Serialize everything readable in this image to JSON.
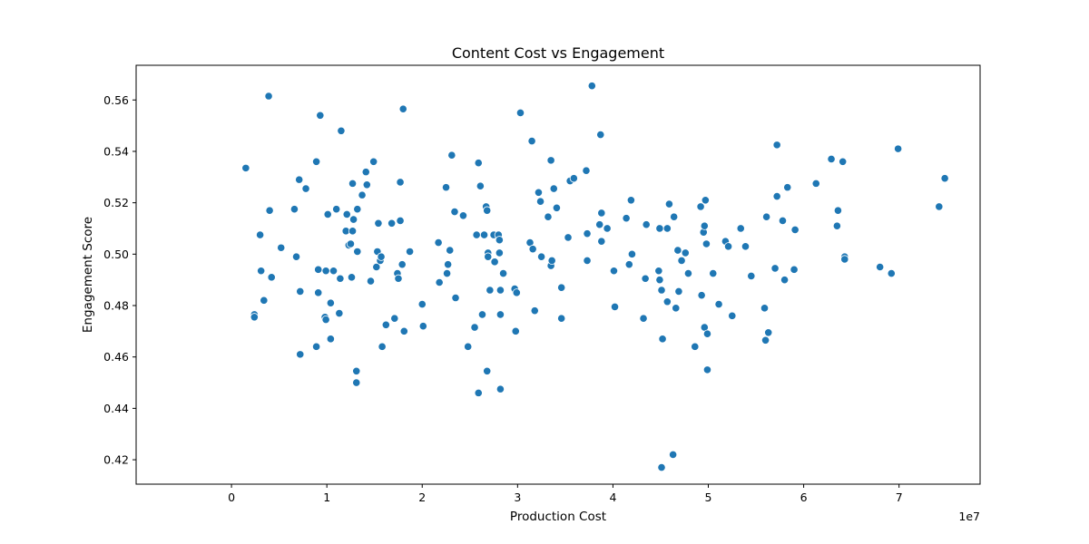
{
  "chart_data": {
    "type": "scatter",
    "title": "Content Cost vs Engagement",
    "xlabel": "Production Cost",
    "ylabel": "Engagement Score",
    "x_offset_label": "1e7",
    "xlim": [
      -1.0,
      7.85
    ],
    "ylim": [
      0.4105,
      0.5735
    ],
    "xticks": [
      0,
      1,
      2,
      3,
      4,
      5,
      6,
      7
    ],
    "xtick_labels": [
      "0",
      "1",
      "2",
      "3",
      "4",
      "5",
      "6",
      "7"
    ],
    "yticks": [
      0.42,
      0.44,
      0.46,
      0.48,
      0.5,
      0.52,
      0.54,
      0.56
    ],
    "ytick_labels": [
      "0.42",
      "0.44",
      "0.46",
      "0.48",
      "0.50",
      "0.52",
      "0.54",
      "0.56"
    ],
    "grid": false,
    "marker_color": "#1f77b4",
    "points": [
      [
        0.15,
        0.5335
      ],
      [
        0.24,
        0.4765
      ],
      [
        0.24,
        0.4755
      ],
      [
        0.3,
        0.5075
      ],
      [
        0.31,
        0.4935
      ],
      [
        0.34,
        0.482
      ],
      [
        0.39,
        0.5615
      ],
      [
        0.4,
        0.517
      ],
      [
        0.42,
        0.491
      ],
      [
        0.52,
        0.5025
      ],
      [
        0.66,
        0.5175
      ],
      [
        0.68,
        0.499
      ],
      [
        0.71,
        0.529
      ],
      [
        0.72,
        0.4855
      ],
      [
        0.72,
        0.461
      ],
      [
        0.78,
        0.5255
      ],
      [
        0.89,
        0.536
      ],
      [
        0.89,
        0.464
      ],
      [
        0.91,
        0.494
      ],
      [
        0.91,
        0.485
      ],
      [
        0.93,
        0.554
      ],
      [
        0.98,
        0.4755
      ],
      [
        0.99,
        0.4745
      ],
      [
        0.99,
        0.4935
      ],
      [
        1.01,
        0.5155
      ],
      [
        1.04,
        0.481
      ],
      [
        1.04,
        0.467
      ],
      [
        1.07,
        0.4935
      ],
      [
        1.1,
        0.5175
      ],
      [
        1.13,
        0.477
      ],
      [
        1.14,
        0.4905
      ],
      [
        1.15,
        0.548
      ],
      [
        1.2,
        0.509
      ],
      [
        1.21,
        0.5155
      ],
      [
        1.23,
        0.5035
      ],
      [
        1.25,
        0.504
      ],
      [
        1.26,
        0.491
      ],
      [
        1.27,
        0.5275
      ],
      [
        1.27,
        0.509
      ],
      [
        1.28,
        0.5135
      ],
      [
        1.31,
        0.4545
      ],
      [
        1.31,
        0.45
      ],
      [
        1.32,
        0.501
      ],
      [
        1.32,
        0.5175
      ],
      [
        1.37,
        0.523
      ],
      [
        1.41,
        0.532
      ],
      [
        1.42,
        0.527
      ],
      [
        1.46,
        0.4895
      ],
      [
        1.49,
        0.536
      ],
      [
        1.52,
        0.495
      ],
      [
        1.53,
        0.501
      ],
      [
        1.54,
        0.512
      ],
      [
        1.56,
        0.4975
      ],
      [
        1.57,
        0.499
      ],
      [
        1.58,
        0.464
      ],
      [
        1.62,
        0.4725
      ],
      [
        1.68,
        0.512
      ],
      [
        1.71,
        0.475
      ],
      [
        1.74,
        0.4925
      ],
      [
        1.75,
        0.4905
      ],
      [
        1.77,
        0.528
      ],
      [
        1.77,
        0.513
      ],
      [
        1.79,
        0.496
      ],
      [
        1.8,
        0.5565
      ],
      [
        1.81,
        0.47
      ],
      [
        1.87,
        0.501
      ],
      [
        2.0,
        0.4805
      ],
      [
        2.01,
        0.472
      ],
      [
        2.17,
        0.5045
      ],
      [
        2.18,
        0.489
      ],
      [
        2.25,
        0.526
      ],
      [
        2.26,
        0.4925
      ],
      [
        2.27,
        0.496
      ],
      [
        2.29,
        0.5015
      ],
      [
        2.31,
        0.5385
      ],
      [
        2.34,
        0.5165
      ],
      [
        2.35,
        0.483
      ],
      [
        2.43,
        0.515
      ],
      [
        2.48,
        0.464
      ],
      [
        2.55,
        0.4715
      ],
      [
        2.57,
        0.5075
      ],
      [
        2.59,
        0.5355
      ],
      [
        2.59,
        0.446
      ],
      [
        2.61,
        0.5265
      ],
      [
        2.63,
        0.4765
      ],
      [
        2.65,
        0.5075
      ],
      [
        2.67,
        0.5185
      ],
      [
        2.68,
        0.517
      ],
      [
        2.68,
        0.4545
      ],
      [
        2.69,
        0.5005
      ],
      [
        2.69,
        0.499
      ],
      [
        2.71,
        0.486
      ],
      [
        2.75,
        0.5075
      ],
      [
        2.76,
        0.497
      ],
      [
        2.8,
        0.5075
      ],
      [
        2.81,
        0.5005
      ],
      [
        2.81,
        0.5055
      ],
      [
        2.82,
        0.486
      ],
      [
        2.82,
        0.4765
      ],
      [
        2.82,
        0.4475
      ],
      [
        2.85,
        0.4925
      ],
      [
        2.97,
        0.4865
      ],
      [
        2.98,
        0.47
      ],
      [
        2.99,
        0.485
      ],
      [
        3.03,
        0.555
      ],
      [
        3.13,
        0.5045
      ],
      [
        3.15,
        0.544
      ],
      [
        3.16,
        0.502
      ],
      [
        3.18,
        0.478
      ],
      [
        3.22,
        0.524
      ],
      [
        3.24,
        0.5205
      ],
      [
        3.25,
        0.499
      ],
      [
        3.32,
        0.5145
      ],
      [
        3.35,
        0.5365
      ],
      [
        3.35,
        0.4955
      ],
      [
        3.36,
        0.4975
      ],
      [
        3.38,
        0.5255
      ],
      [
        3.41,
        0.518
      ],
      [
        3.46,
        0.487
      ],
      [
        3.46,
        0.475
      ],
      [
        3.53,
        0.5065
      ],
      [
        3.55,
        0.5285
      ],
      [
        3.59,
        0.5295
      ],
      [
        3.72,
        0.5325
      ],
      [
        3.73,
        0.508
      ],
      [
        3.73,
        0.4975
      ],
      [
        3.78,
        0.5655
      ],
      [
        3.86,
        0.5115
      ],
      [
        3.87,
        0.5465
      ],
      [
        3.88,
        0.516
      ],
      [
        3.88,
        0.505
      ],
      [
        3.94,
        0.51
      ],
      [
        4.01,
        0.4935
      ],
      [
        4.02,
        0.4795
      ],
      [
        4.14,
        0.514
      ],
      [
        4.17,
        0.496
      ],
      [
        4.19,
        0.521
      ],
      [
        4.2,
        0.5
      ],
      [
        4.32,
        0.475
      ],
      [
        4.34,
        0.4905
      ],
      [
        4.35,
        0.5115
      ],
      [
        4.48,
        0.4935
      ],
      [
        4.49,
        0.51
      ],
      [
        4.49,
        0.49
      ],
      [
        4.51,
        0.486
      ],
      [
        4.51,
        0.417
      ],
      [
        4.52,
        0.467
      ],
      [
        4.57,
        0.51
      ],
      [
        4.57,
        0.4815
      ],
      [
        4.59,
        0.5195
      ],
      [
        4.63,
        0.422
      ],
      [
        4.64,
        0.5145
      ],
      [
        4.66,
        0.479
      ],
      [
        4.68,
        0.5015
      ],
      [
        4.69,
        0.4855
      ],
      [
        4.72,
        0.4975
      ],
      [
        4.76,
        0.5005
      ],
      [
        4.79,
        0.4925
      ],
      [
        4.86,
        0.464
      ],
      [
        4.92,
        0.5185
      ],
      [
        4.93,
        0.484
      ],
      [
        4.95,
        0.5085
      ],
      [
        4.96,
        0.511
      ],
      [
        4.96,
        0.4715
      ],
      [
        4.97,
        0.521
      ],
      [
        4.98,
        0.504
      ],
      [
        4.99,
        0.469
      ],
      [
        4.99,
        0.455
      ],
      [
        5.05,
        0.4925
      ],
      [
        5.11,
        0.4805
      ],
      [
        5.18,
        0.505
      ],
      [
        5.21,
        0.503
      ],
      [
        5.25,
        0.476
      ],
      [
        5.34,
        0.51
      ],
      [
        5.39,
        0.503
      ],
      [
        5.45,
        0.4915
      ],
      [
        5.59,
        0.479
      ],
      [
        5.6,
        0.4665
      ],
      [
        5.61,
        0.5145
      ],
      [
        5.63,
        0.4695
      ],
      [
        5.7,
        0.4945
      ],
      [
        5.72,
        0.5425
      ],
      [
        5.72,
        0.5225
      ],
      [
        5.78,
        0.513
      ],
      [
        5.8,
        0.49
      ],
      [
        5.83,
        0.526
      ],
      [
        5.9,
        0.494
      ],
      [
        5.91,
        0.5095
      ],
      [
        6.13,
        0.5275
      ],
      [
        6.29,
        0.537
      ],
      [
        6.35,
        0.511
      ],
      [
        6.36,
        0.517
      ],
      [
        6.41,
        0.536
      ],
      [
        6.43,
        0.499
      ],
      [
        6.43,
        0.498
      ],
      [
        6.8,
        0.495
      ],
      [
        6.92,
        0.4925
      ],
      [
        6.99,
        0.541
      ],
      [
        7.42,
        0.5185
      ],
      [
        7.48,
        0.5295
      ]
    ]
  }
}
